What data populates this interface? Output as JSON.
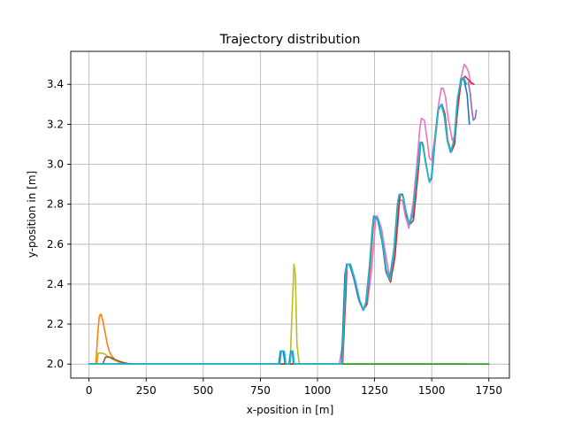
{
  "chart_data": {
    "type": "line",
    "title": "Trajectory distribution",
    "xlabel": "x-position in [m]",
    "ylabel": "y-position in [m]",
    "xlim": [
      -80,
      1840
    ],
    "ylim": [
      1.93,
      3.565
    ],
    "xticks": [
      0,
      250,
      500,
      750,
      1000,
      1250,
      1500,
      1750
    ],
    "yticks": [
      2.0,
      2.2,
      2.4,
      2.6,
      2.8,
      3.0,
      3.2,
      3.4
    ],
    "ytick_labels": [
      "2.0",
      "2.2",
      "2.4",
      "2.6",
      "2.8",
      "3.0",
      "3.2",
      "3.4"
    ],
    "grid": true,
    "legend": "none",
    "colors": {
      "frame": "#000000",
      "grid": "#b0b0b0"
    },
    "series": [
      {
        "color": "#ff7f0e",
        "x": [
          0,
          30,
          38,
          45,
          52,
          60,
          70,
          80,
          90,
          100,
          115,
          130,
          150,
          200,
          400,
          700,
          900,
          1100,
          1400,
          1650
        ],
        "y": [
          2.0,
          2.0,
          2.15,
          2.24,
          2.25,
          2.22,
          2.16,
          2.1,
          2.06,
          2.04,
          2.02,
          2.01,
          2.0,
          2.0,
          2.0,
          2.0,
          2.0,
          2.0,
          2.0,
          2.0
        ]
      },
      {
        "color": "#bcbd22",
        "x": [
          0,
          35,
          40,
          55,
          70,
          80,
          95,
          110,
          130,
          150,
          180,
          250,
          500,
          800,
          880,
          890,
          897,
          903,
          910,
          920,
          1100,
          1400,
          1660
        ],
        "y": [
          2.0,
          2.0,
          2.055,
          2.055,
          2.05,
          2.04,
          2.03,
          2.02,
          2.01,
          2.005,
          2.0,
          2.0,
          2.0,
          2.0,
          2.0,
          2.3,
          2.5,
          2.45,
          2.1,
          2.0,
          2.0,
          2.0,
          2.0
        ]
      },
      {
        "color": "#8c564b",
        "x": [
          0,
          60,
          72,
          90,
          110,
          130,
          150,
          170,
          200,
          1750
        ],
        "y": [
          2.0,
          2.0,
          2.035,
          2.035,
          2.025,
          2.015,
          2.008,
          2.003,
          2.0,
          2.0
        ]
      },
      {
        "color": "#2ca02c",
        "x": [
          0,
          400,
          800,
          1200,
          1600,
          1650,
          1750
        ],
        "y": [
          2.0,
          2.0,
          2.0,
          2.0,
          2.0,
          2.0,
          2.0
        ]
      },
      {
        "color": "#e377c2",
        "x": [
          0,
          1095,
          1110,
          1125,
          1130,
          1140,
          1160,
          1180,
          1200,
          1218,
          1235,
          1248,
          1255,
          1262,
          1280,
          1300,
          1318,
          1335,
          1352,
          1360,
          1372,
          1385,
          1400,
          1418,
          1435,
          1448,
          1455,
          1468,
          1480,
          1490,
          1500,
          1512,
          1530,
          1542,
          1550,
          1560,
          1572,
          1590,
          1600,
          1615,
          1630,
          1642,
          1650,
          1662,
          1672
        ],
        "y": [
          2.0,
          2.0,
          2.1,
          2.35,
          2.5,
          2.5,
          2.42,
          2.32,
          2.27,
          2.3,
          2.45,
          2.62,
          2.74,
          2.74,
          2.68,
          2.54,
          2.42,
          2.5,
          2.7,
          2.82,
          2.82,
          2.74,
          2.68,
          2.8,
          3.0,
          3.18,
          3.23,
          3.22,
          3.12,
          3.03,
          3.02,
          3.12,
          3.3,
          3.38,
          3.38,
          3.34,
          3.23,
          3.12,
          3.14,
          3.28,
          3.44,
          3.5,
          3.49,
          3.46,
          3.4
        ]
      },
      {
        "color": "#d62728",
        "x": [
          0,
          1110,
          1122,
          1128,
          1140,
          1160,
          1180,
          1200,
          1215,
          1230,
          1242,
          1248,
          1265,
          1285,
          1300,
          1320,
          1340,
          1355,
          1362,
          1375,
          1390,
          1405,
          1420,
          1440,
          1452,
          1462,
          1475,
          1490,
          1500,
          1515,
          1530,
          1545,
          1558,
          1570,
          1585,
          1600,
          1615,
          1630,
          1645,
          1655,
          1670,
          1685
        ],
        "y": [
          2.0,
          2.0,
          2.3,
          2.5,
          2.5,
          2.44,
          2.33,
          2.27,
          2.3,
          2.48,
          2.66,
          2.74,
          2.72,
          2.6,
          2.46,
          2.41,
          2.55,
          2.78,
          2.85,
          2.84,
          2.74,
          2.7,
          2.72,
          2.95,
          3.11,
          3.1,
          3.0,
          2.91,
          2.93,
          3.12,
          3.28,
          3.3,
          3.25,
          3.12,
          3.06,
          3.1,
          3.3,
          3.42,
          3.44,
          3.43,
          3.41,
          3.4
        ]
      },
      {
        "color": "#1f77b4",
        "x": [
          0,
          830,
          838,
          850,
          858,
          870,
          875,
          883,
          890,
          895,
          900,
          1000,
          1105,
          1112,
          1120,
          1128,
          1140,
          1160,
          1180,
          1200,
          1212,
          1228,
          1240,
          1246,
          1262,
          1282,
          1300,
          1315,
          1335,
          1350,
          1358,
          1372,
          1388,
          1402,
          1416,
          1436,
          1450,
          1458,
          1472,
          1488,
          1498,
          1512,
          1528,
          1542,
          1555,
          1568,
          1582,
          1598,
          1612,
          1628,
          1640,
          1655,
          1665
        ],
        "y": [
          2.0,
          2.0,
          2.065,
          2.065,
          2.0,
          2.0,
          2.0,
          2.065,
          2.065,
          2.0,
          2.0,
          2.0,
          2.0,
          2.2,
          2.45,
          2.5,
          2.5,
          2.43,
          2.33,
          2.27,
          2.31,
          2.5,
          2.68,
          2.74,
          2.73,
          2.62,
          2.48,
          2.42,
          2.58,
          2.8,
          2.85,
          2.85,
          2.76,
          2.7,
          2.74,
          2.96,
          3.11,
          3.11,
          3.02,
          2.92,
          2.93,
          3.1,
          3.27,
          3.3,
          3.24,
          3.12,
          3.06,
          3.12,
          3.32,
          3.43,
          3.43,
          3.35,
          3.2
        ]
      },
      {
        "color": "#9467bd",
        "x": [
          1660,
          1668,
          1675,
          1682,
          1690,
          1695
        ],
        "y": [
          3.41,
          3.36,
          3.28,
          3.22,
          3.23,
          3.27
        ]
      },
      {
        "color": "#17becf",
        "x": [
          0,
          835,
          842,
          855,
          862,
          872,
          878,
          886,
          893,
          898,
          905,
          1000,
          1108,
          1116,
          1124,
          1132,
          1145,
          1165,
          1185,
          1202,
          1215,
          1230,
          1243,
          1250,
          1267,
          1287,
          1303,
          1318,
          1338,
          1352,
          1360,
          1374,
          1390,
          1404,
          1418,
          1438,
          1452,
          1460,
          1474,
          1490,
          1500,
          1514,
          1530,
          1544,
          1557,
          1570,
          1584,
          1600,
          1614,
          1630,
          1642,
          1652
        ],
        "y": [
          2.0,
          2.0,
          2.065,
          2.065,
          2.0,
          2.0,
          2.0,
          2.065,
          2.065,
          2.0,
          2.0,
          2.0,
          2.0,
          2.22,
          2.46,
          2.5,
          2.5,
          2.42,
          2.32,
          2.27,
          2.32,
          2.52,
          2.7,
          2.74,
          2.72,
          2.6,
          2.46,
          2.42,
          2.6,
          2.82,
          2.85,
          2.84,
          2.75,
          2.7,
          2.76,
          2.98,
          3.11,
          3.1,
          3.0,
          2.91,
          2.94,
          3.12,
          3.28,
          3.3,
          3.23,
          3.11,
          3.06,
          3.14,
          3.34,
          3.43,
          3.43,
          3.4
        ]
      }
    ]
  }
}
